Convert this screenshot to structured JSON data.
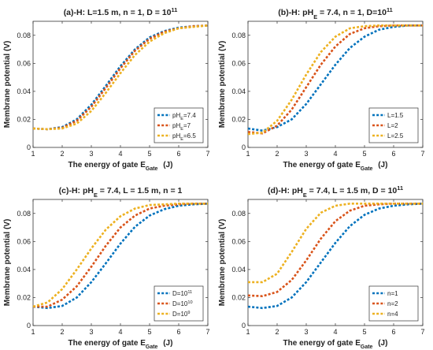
{
  "chart_data": [
    {
      "type": "line",
      "title": "(a)-H: L=1.5 m, n = 1, D = 10",
      "title_sup": "11",
      "xlabel": "The energy of gate E",
      "xlabel_sub": "Gate",
      "xlabel_unit": "(J)",
      "ylabel": "Membrane potential (V)",
      "xlim": [
        1,
        7
      ],
      "ylim": [
        0,
        0.09
      ],
      "xticks": [
        "1",
        "2",
        "3",
        "4",
        "5",
        "6",
        "7"
      ],
      "yticks": [
        "0",
        "0.02",
        "0.04",
        "0.06",
        "0.08"
      ],
      "legend_position": "bottom-right",
      "series": [
        {
          "label": "pH",
          "sub": "E",
          "suffix": "=7.4",
          "color": "#0072BD",
          "x": [
            1,
            1.5,
            2,
            2.5,
            3,
            3.5,
            4,
            4.5,
            5,
            5.5,
            6,
            6.5,
            7
          ],
          "y": [
            0.0135,
            0.013,
            0.0145,
            0.02,
            0.0305,
            0.044,
            0.058,
            0.07,
            0.0785,
            0.083,
            0.0855,
            0.0865,
            0.087
          ]
        },
        {
          "label": "pH",
          "sub": "E",
          "suffix": "=7",
          "color": "#D95319",
          "x": [
            1,
            1.5,
            2,
            2.5,
            3,
            3.5,
            4,
            4.5,
            5,
            5.5,
            6,
            6.5,
            7
          ],
          "y": [
            0.0135,
            0.013,
            0.014,
            0.019,
            0.029,
            0.0425,
            0.0565,
            0.069,
            0.0775,
            0.0825,
            0.085,
            0.0865,
            0.087
          ]
        },
        {
          "label": "pH",
          "sub": "E",
          "suffix": "=6.5",
          "color": "#EDB120",
          "x": [
            1,
            1.5,
            2,
            2.5,
            3,
            3.5,
            4,
            4.5,
            5,
            5.5,
            6,
            6.5,
            7
          ],
          "y": [
            0.0135,
            0.013,
            0.0135,
            0.017,
            0.026,
            0.039,
            0.053,
            0.066,
            0.0755,
            0.0815,
            0.085,
            0.086,
            0.087
          ]
        }
      ]
    },
    {
      "type": "line",
      "title": "(b)-H: pH",
      "title_sub": "E",
      "title_rest": " = 7.4, n = 1, D=10",
      "title_sup": "11",
      "xlabel": "The energy of gate E",
      "xlabel_sub": "Gate",
      "xlabel_unit": "(J)",
      "ylabel": "Membrane potential (V)",
      "xlim": [
        1,
        7
      ],
      "ylim": [
        0,
        0.09
      ],
      "xticks": [
        "1",
        "2",
        "3",
        "4",
        "5",
        "6",
        "7"
      ],
      "yticks": [
        "0",
        "0.02",
        "0.04",
        "0.06",
        "0.08"
      ],
      "legend_position": "bottom-right",
      "series": [
        {
          "label": "L=1.5",
          "color": "#0072BD",
          "x": [
            1,
            1.5,
            2,
            2.5,
            3,
            3.5,
            4,
            4.5,
            5,
            5.5,
            6,
            6.5,
            7
          ],
          "y": [
            0.0135,
            0.012,
            0.0145,
            0.02,
            0.031,
            0.045,
            0.059,
            0.071,
            0.079,
            0.084,
            0.086,
            0.087,
            0.087
          ]
        },
        {
          "label": "L=2",
          "color": "#D95319",
          "x": [
            1,
            1.5,
            2,
            2.5,
            3,
            3.5,
            4,
            4.5,
            5,
            5.5,
            6,
            6.5,
            7
          ],
          "y": [
            0.011,
            0.01,
            0.0155,
            0.027,
            0.043,
            0.059,
            0.072,
            0.081,
            0.085,
            0.0865,
            0.087,
            0.087,
            0.087
          ]
        },
        {
          "label": "L=2.5",
          "color": "#EDB120",
          "x": [
            1,
            1.5,
            2,
            2.5,
            3,
            3.5,
            4,
            4.5,
            5,
            5.5,
            6,
            6.5,
            7
          ],
          "y": [
            0.0095,
            0.0105,
            0.019,
            0.034,
            0.052,
            0.068,
            0.079,
            0.085,
            0.0865,
            0.087,
            0.087,
            0.087,
            0.087
          ]
        }
      ]
    },
    {
      "type": "line",
      "title": "(c)-H: pH",
      "title_sub": "E",
      "title_rest": " = 7.4, L = 1.5 m, n = 1",
      "xlabel": "The energy of gate E",
      "xlabel_sub": "Gate",
      "xlabel_unit": "(J)",
      "ylabel": "Membrane potential (V)",
      "xlim": [
        1,
        7
      ],
      "ylim": [
        0,
        0.09
      ],
      "xticks": [
        "1",
        "2",
        "3",
        "4",
        "5",
        "6",
        "7"
      ],
      "yticks": [
        "0",
        "0.02",
        "0.04",
        "0.06",
        "0.08"
      ],
      "legend_position": "bottom-right",
      "series": [
        {
          "label": "D=10",
          "sup": "11",
          "color": "#0072BD",
          "x": [
            1,
            1.5,
            2,
            2.5,
            3,
            3.5,
            4,
            4.5,
            5,
            5.5,
            6,
            6.5,
            7
          ],
          "y": [
            0.0135,
            0.0125,
            0.014,
            0.02,
            0.031,
            0.0445,
            0.0585,
            0.0705,
            0.0785,
            0.083,
            0.0855,
            0.0865,
            0.087
          ]
        },
        {
          "label": "D=10",
          "sup": "10",
          "color": "#D95319",
          "x": [
            1,
            1.5,
            2,
            2.5,
            3,
            3.5,
            4,
            4.5,
            5,
            5.5,
            6,
            6.5,
            7
          ],
          "y": [
            0.0135,
            0.0135,
            0.0185,
            0.028,
            0.042,
            0.057,
            0.07,
            0.0785,
            0.0835,
            0.0855,
            0.0865,
            0.087,
            0.087
          ]
        },
        {
          "label": "D=10",
          "sup": "9",
          "color": "#EDB120",
          "x": [
            1,
            1.5,
            2,
            2.5,
            3,
            3.5,
            4,
            4.5,
            5,
            5.5,
            6,
            6.5,
            7
          ],
          "y": [
            0.0135,
            0.0165,
            0.026,
            0.04,
            0.055,
            0.0685,
            0.078,
            0.0835,
            0.086,
            0.0865,
            0.087,
            0.087,
            0.087
          ]
        }
      ]
    },
    {
      "type": "line",
      "title": "(d)-H: pH",
      "title_sub": "E",
      "title_rest": " = 7.4, L = 1.5 m, D = 10",
      "title_sup": "11",
      "xlabel": "The energy of gate E",
      "xlabel_sub": "Gate",
      "xlabel_unit": "(J)",
      "ylabel": "Membrane potential (V)",
      "xlim": [
        1,
        7
      ],
      "ylim": [
        0,
        0.09
      ],
      "xticks": [
        "1",
        "2",
        "3",
        "4",
        "5",
        "6",
        "7"
      ],
      "yticks": [
        "0",
        "0.02",
        "0.04",
        "0.06",
        "0.08"
      ],
      "legend_position": "bottom-right",
      "series": [
        {
          "label": "n=1",
          "color": "#0072BD",
          "x": [
            1,
            1.5,
            2,
            2.5,
            3,
            3.5,
            4,
            4.5,
            5,
            5.5,
            6,
            6.5,
            7
          ],
          "y": [
            0.0135,
            0.0125,
            0.014,
            0.02,
            0.031,
            0.045,
            0.059,
            0.071,
            0.079,
            0.0835,
            0.0855,
            0.0865,
            0.087
          ]
        },
        {
          "label": "n=2",
          "color": "#D95319",
          "x": [
            1,
            1.5,
            2,
            2.5,
            3,
            3.5,
            4,
            4.5,
            5,
            5.5,
            6,
            6.5,
            7
          ],
          "y": [
            0.0215,
            0.021,
            0.024,
            0.0325,
            0.0465,
            0.062,
            0.0745,
            0.082,
            0.0855,
            0.0865,
            0.087,
            0.087,
            0.087
          ]
        },
        {
          "label": "n=4",
          "color": "#EDB120",
          "x": [
            1,
            1.5,
            2,
            2.5,
            3,
            3.5,
            4,
            4.5,
            5,
            5.5,
            6,
            6.5,
            7
          ],
          "y": [
            0.031,
            0.031,
            0.037,
            0.0525,
            0.069,
            0.0805,
            0.0855,
            0.087,
            0.087,
            0.087,
            0.087,
            0.087,
            0.087
          ]
        }
      ]
    }
  ]
}
